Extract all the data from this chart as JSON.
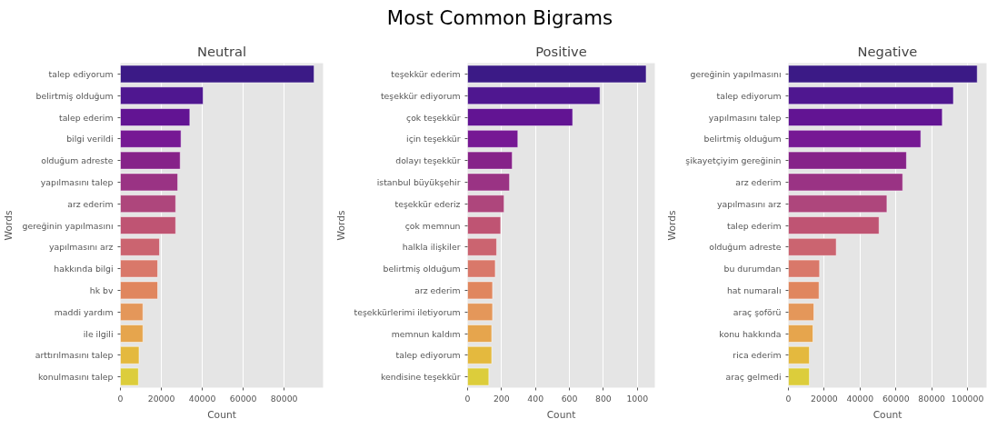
{
  "chart_data": [
    {
      "type": "bar",
      "orientation": "horizontal",
      "title": "Neutral",
      "xlabel": "Count",
      "ylabel": "Words",
      "annotations": [
        "Most Common Bigrams"
      ],
      "grid": "x",
      "categories": [
        "talep ediyorum",
        "belirtmiş olduğum",
        "talep ederim",
        "bilgi verildi",
        "olduğum adreste",
        "yapılmasını talep",
        "arz ederim",
        "gereğinin yapılmasını",
        "yapılmasını arz",
        "hakkında bilgi",
        "hk bv",
        "maddi yardım",
        "ile ilgili",
        "arttırılmasını talep",
        "konulmasını talep"
      ],
      "values": [
        94600,
        40400,
        33900,
        29600,
        29200,
        28000,
        27000,
        27000,
        19100,
        18200,
        18200,
        11000,
        11000,
        9100,
        8800
      ],
      "colors": [
        "#3b1a86",
        "#4f1790",
        "#621493",
        "#761894",
        "#862289",
        "#9a3384",
        "#ae467c",
        "#bf5473",
        "#cb6470",
        "#d9786a",
        "#e0865e",
        "#e4975a",
        "#e6a54d",
        "#e4b93e",
        "#dccd3b"
      ],
      "xlim": [
        0,
        99000
      ],
      "xticks": [
        0,
        20000,
        40000,
        60000,
        80000
      ]
    },
    {
      "type": "bar",
      "orientation": "horizontal",
      "title": "Positive",
      "xlabel": "Count",
      "ylabel": "Words",
      "grid": "x",
      "categories": [
        "teşekkür ederim",
        "teşekkür ediyorum",
        "çok teşekkür",
        "için teşekkür",
        "dolayı teşekkür",
        "istanbul büyükşehir",
        "teşekkür ederiz",
        "çok memnun",
        "halkla ilişkiler",
        "belirtmiş olduğum",
        "arz ederim",
        "teşekkürlerimi iletiyorum",
        "memnun kaldım",
        "talep ediyorum",
        "kendisine teşekkür"
      ],
      "values": [
        1052,
        780,
        619,
        296,
        263,
        247,
        215,
        195,
        171,
        163,
        147,
        147,
        142,
        142,
        125
      ],
      "colors": [
        "#3b1a86",
        "#4f1790",
        "#621493",
        "#761894",
        "#862289",
        "#9a3384",
        "#ae467c",
        "#bf5473",
        "#cb6470",
        "#d9786a",
        "#e0865e",
        "#e4975a",
        "#e6a54d",
        "#e4b93e",
        "#dccd3b"
      ],
      "xlim": [
        0,
        1103
      ],
      "xticks": [
        0,
        200,
        400,
        600,
        800,
        1000
      ]
    },
    {
      "type": "bar",
      "orientation": "horizontal",
      "title": "Negative",
      "xlabel": "Count",
      "ylabel": "Words",
      "grid": "x",
      "categories": [
        "gereğinin yapılmasını",
        "talep ediyorum",
        "yapılmasını talep",
        "belirtmiş olduğum",
        "şikayetçiyim gereğinin",
        "arz ederim",
        "yapılmasını arz",
        "talep ederim",
        "olduğum adreste",
        "bu durumdan",
        "hat numaralı",
        "araç şoförü",
        "konu hakkında",
        "rica ederim",
        "araç gelmedi"
      ],
      "values": [
        105400,
        92100,
        85900,
        73900,
        65900,
        63800,
        55000,
        50600,
        26700,
        17400,
        17100,
        14200,
        13700,
        11700,
        11700
      ],
      "colors": [
        "#3b1a86",
        "#4f1790",
        "#621493",
        "#761894",
        "#862289",
        "#9a3384",
        "#ae467c",
        "#bf5473",
        "#cb6470",
        "#d9786a",
        "#e0865e",
        "#e4975a",
        "#e6a54d",
        "#e4b93e",
        "#dccd3b"
      ],
      "xlim": [
        0,
        110600
      ],
      "xticks": [
        0,
        20000,
        40000,
        60000,
        80000,
        100000
      ]
    }
  ]
}
